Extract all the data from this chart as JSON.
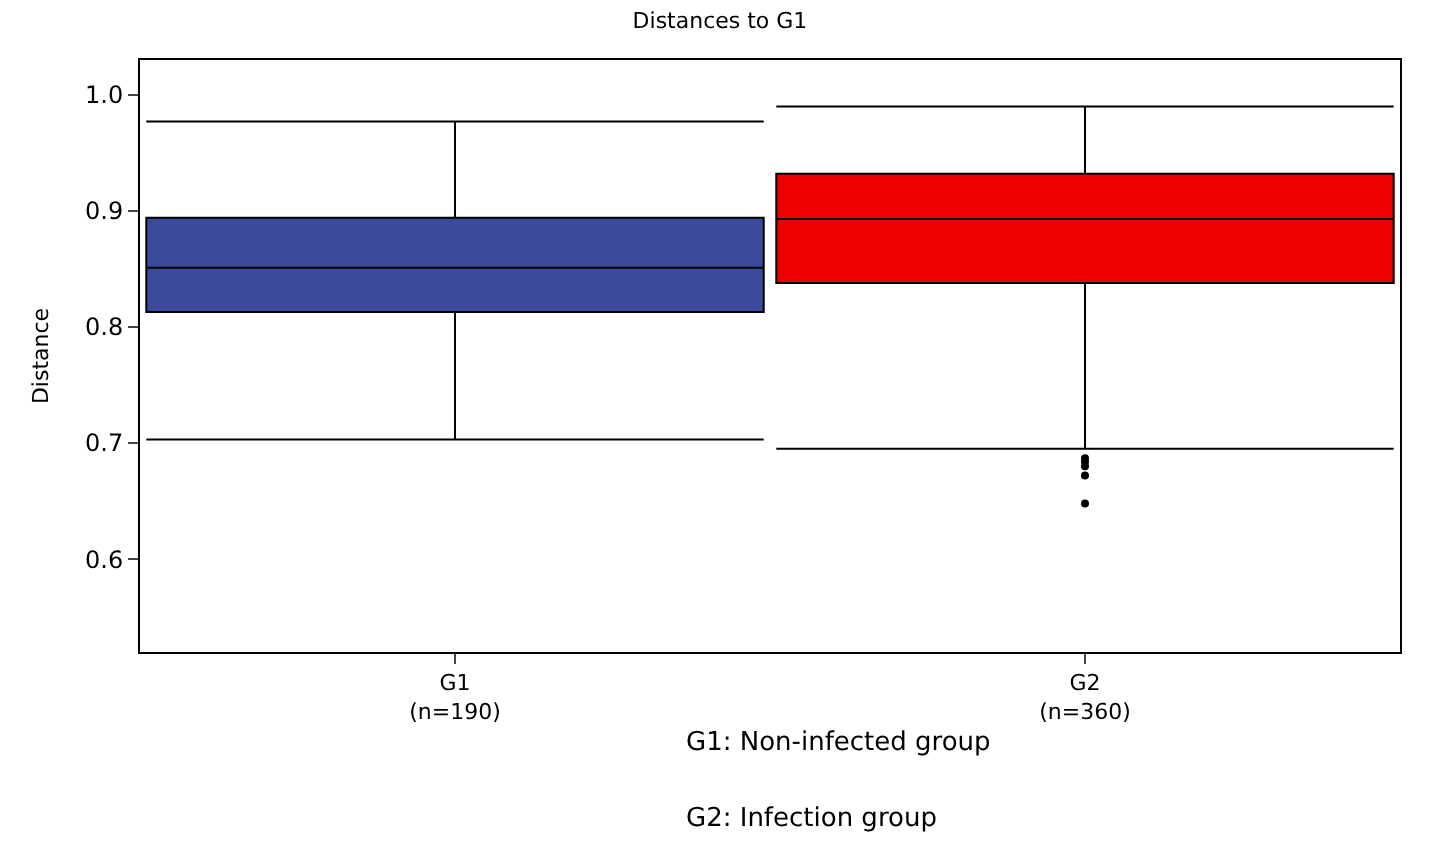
{
  "chart_data": {
    "type": "box",
    "title": "Distances to G1",
    "ylabel": "Distance",
    "categories": [
      "G1\n(n=190)",
      "G2\n(n=360)"
    ],
    "series": [
      {
        "color": "#3b4a9a",
        "boxes": [
          {
            "low": 0.703,
            "q1": 0.813,
            "median": 0.851,
            "q3": 0.894,
            "high": 0.977
          },
          null
        ]
      },
      {
        "color": "#ee0000",
        "boxes": [
          null,
          {
            "low": 0.695,
            "q1": 0.838,
            "median": 0.893,
            "q3": 0.932,
            "high": 0.99,
            "outliers": [
              0.687,
              0.684,
              0.68,
              0.672,
              0.648
            ]
          }
        ]
      }
    ],
    "ylim": [
      0.52,
      1.03
    ],
    "yticks": [
      0.6,
      0.7,
      0.8,
      0.9,
      {
        "value": 1,
        "label": "1.0"
      }
    ],
    "annotations": [
      "G1: Non-infected group",
      "G2: Infection group"
    ]
  }
}
